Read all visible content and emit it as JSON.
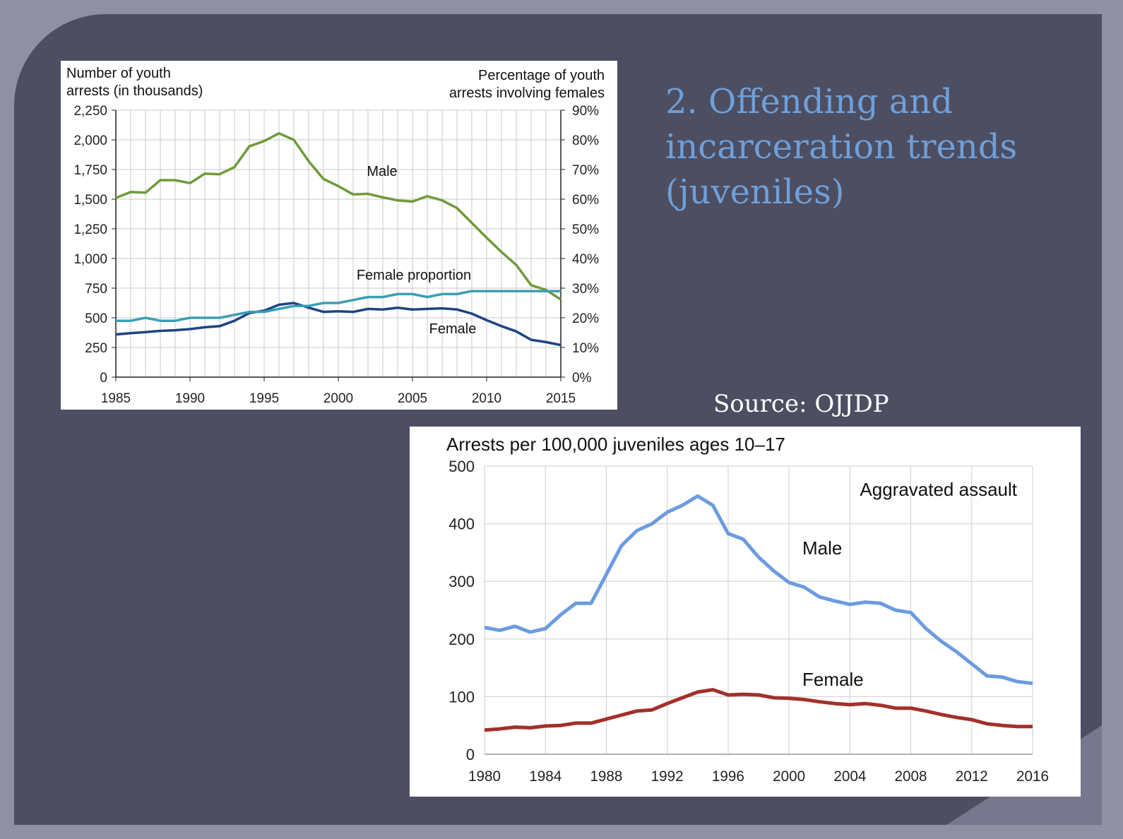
{
  "slide": {
    "title": "2. Offending and incarceration trends (juveniles)",
    "source": "Source: OJJDP"
  },
  "colors": {
    "background": "#4d4e62",
    "title": "#6f9fd8",
    "male1": "#6e9b3a",
    "female1": "#1c4584",
    "female_prop": "#3a9fb5",
    "male2": "#6c9bdf",
    "female2": "#a2302a"
  },
  "chart_data": [
    {
      "type": "line",
      "left_axis_label": [
        "Number of youth",
        "arrests (in thousands)"
      ],
      "right_axis_label": [
        "Percentage of youth",
        "arrests involving females"
      ],
      "x": [
        1985,
        1986,
        1987,
        1988,
        1989,
        1990,
        1991,
        1992,
        1993,
        1994,
        1995,
        1996,
        1997,
        1998,
        1999,
        2000,
        2001,
        2002,
        2003,
        2004,
        2005,
        2006,
        2007,
        2008,
        2009,
        2010,
        2011,
        2012,
        2013,
        2014,
        2015
      ],
      "xlim": [
        1985,
        2015
      ],
      "x_ticks": [
        "1985",
        "1990",
        "1995",
        "2000",
        "2005",
        "2010",
        "2015"
      ],
      "ylim": [
        0,
        2250
      ],
      "y_ticks": [
        "0",
        "250",
        "500",
        "750",
        "1,000",
        "1,250",
        "1,500",
        "1,750",
        "2,000",
        "2,250"
      ],
      "y2lim": [
        0,
        90
      ],
      "y2_ticks": [
        "0%",
        "10%",
        "20%",
        "30%",
        "40%",
        "50%",
        "60%",
        "70%",
        "80%",
        "90%"
      ],
      "series": [
        {
          "name": "Male",
          "axis": "left",
          "values": [
            1510,
            1560,
            1555,
            1660,
            1660,
            1635,
            1715,
            1710,
            1770,
            1945,
            1990,
            2055,
            2000,
            1820,
            1670,
            1610,
            1540,
            1545,
            1515,
            1490,
            1480,
            1525,
            1490,
            1425,
            1300,
            1175,
            1055,
            945,
            775,
            735,
            655
          ]
        },
        {
          "name": "Female",
          "axis": "left",
          "values": [
            360,
            370,
            380,
            390,
            395,
            405,
            420,
            430,
            475,
            540,
            560,
            610,
            625,
            585,
            550,
            555,
            550,
            575,
            570,
            585,
            570,
            575,
            580,
            570,
            535,
            480,
            430,
            385,
            315,
            295,
            270
          ]
        },
        {
          "name": "Female proportion",
          "axis": "right",
          "values": [
            19,
            19,
            20,
            19,
            19,
            20,
            20,
            20,
            21,
            22,
            22,
            23,
            24,
            24,
            25,
            25,
            26,
            27,
            27,
            28,
            28,
            27,
            28,
            28,
            29,
            29,
            29,
            29,
            29,
            29,
            29
          ]
        }
      ],
      "labels": {
        "male": "Male",
        "female": "Female",
        "female_prop": "Female proportion"
      }
    },
    {
      "type": "line",
      "title": "Arrests per 100,000 juveniles ages 10–17",
      "annotation": "Aggravated assault",
      "x": [
        1980,
        1981,
        1982,
        1983,
        1984,
        1985,
        1986,
        1987,
        1988,
        1989,
        1990,
        1991,
        1992,
        1993,
        1994,
        1995,
        1996,
        1997,
        1998,
        1999,
        2000,
        2001,
        2002,
        2003,
        2004,
        2005,
        2006,
        2007,
        2008,
        2009,
        2010,
        2011,
        2012,
        2013,
        2014,
        2015,
        2016
      ],
      "xlim": [
        1980,
        2016
      ],
      "x_ticks": [
        "1980",
        "1984",
        "1988",
        "1992",
        "1996",
        "2000",
        "2004",
        "2008",
        "2012",
        "2016"
      ],
      "ylim": [
        0,
        500
      ],
      "y_ticks": [
        "0",
        "100",
        "200",
        "300",
        "400",
        "500"
      ],
      "series": [
        {
          "name": "Male",
          "values": [
            220,
            215,
            222,
            212,
            218,
            242,
            262,
            262,
            312,
            362,
            388,
            400,
            420,
            432,
            448,
            432,
            383,
            373,
            342,
            318,
            298,
            290,
            273,
            266,
            260,
            264,
            262,
            250,
            246,
            218,
            196,
            178,
            157,
            136,
            134,
            126,
            123
          ]
        },
        {
          "name": "Female",
          "values": [
            42,
            44,
            47,
            46,
            49,
            50,
            54,
            54,
            61,
            68,
            75,
            77,
            88,
            98,
            108,
            112,
            103,
            104,
            103,
            98,
            97,
            95,
            91,
            88,
            86,
            88,
            85,
            80,
            80,
            75,
            69,
            64,
            60,
            53,
            50,
            48,
            48
          ]
        }
      ],
      "labels": {
        "male": "Male",
        "female": "Female"
      }
    }
  ]
}
